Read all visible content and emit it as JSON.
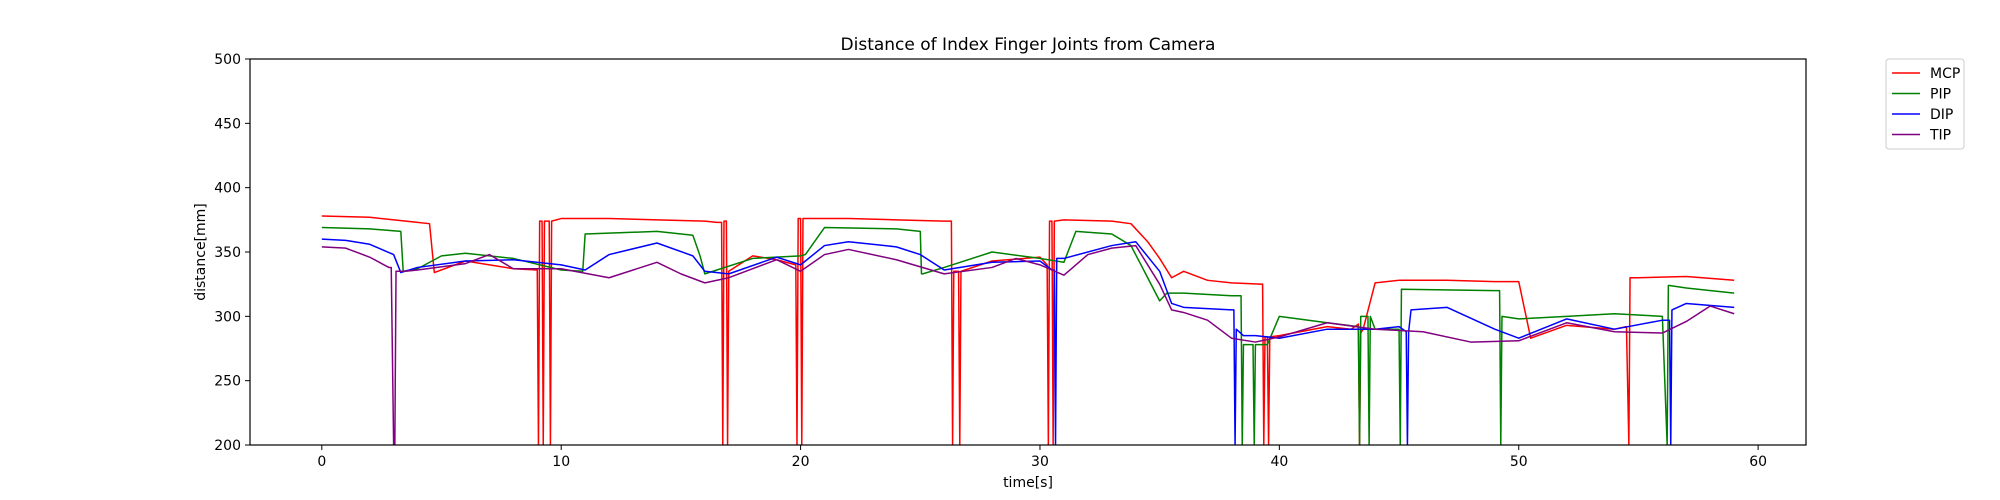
{
  "chart_data": {
    "type": "line",
    "title": "Distance of Index Finger Joints from Camera",
    "xlabel": "time[s]",
    "ylabel": "distance[mm]",
    "xlim": [
      -3,
      62
    ],
    "ylim": [
      200,
      500
    ],
    "xticks": [
      0,
      10,
      20,
      30,
      40,
      50,
      60
    ],
    "yticks": [
      200,
      250,
      300,
      350,
      400,
      450,
      500
    ],
    "grid": false,
    "legend": "outside-top-right",
    "series": [
      {
        "name": "MCP",
        "color": "#ff0000",
        "x": [
          0,
          2,
          4,
          4.5,
          4.7,
          6,
          8,
          9,
          9.05,
          9.1,
          9.2,
          9.25,
          9.3,
          9.5,
          9.55,
          9.6,
          10,
          12,
          14,
          16,
          16.5,
          16.7,
          16.75,
          16.8,
          16.9,
          16.95,
          17,
          18,
          19,
          19.8,
          19.85,
          19.9,
          20,
          20.05,
          20.1,
          22,
          24,
          26,
          26.3,
          26.35,
          26.4,
          26.6,
          26.65,
          26.7,
          28,
          30,
          30.3,
          30.35,
          30.4,
          30.5,
          30.55,
          30.6,
          31,
          33,
          33.8,
          34.5,
          35,
          35.5,
          36,
          37,
          38,
          39.2,
          39.3,
          39.35,
          39.4,
          39.5,
          39.55,
          39.6,
          40,
          42,
          43,
          43.3,
          43.35,
          43.4,
          43.5,
          44,
          45,
          47,
          49,
          50,
          50.5,
          52,
          54,
          54.5,
          54.6,
          54.65,
          54.7,
          55,
          57,
          59
        ],
        "y": [
          378,
          377,
          373,
          372,
          334,
          343,
          337,
          336,
          200,
          374,
          374,
          200,
          374,
          374,
          200,
          374,
          376,
          376,
          375,
          374,
          373,
          373,
          200,
          374,
          374,
          200,
          335,
          347,
          344,
          340,
          200,
          376,
          376,
          200,
          376,
          376,
          375,
          374,
          374,
          200,
          335,
          335,
          200,
          335,
          343,
          346,
          340,
          200,
          374,
          374,
          200,
          374,
          375,
          374,
          372,
          358,
          345,
          330,
          335,
          328,
          326,
          325,
          325,
          200,
          284,
          284,
          200,
          284,
          285,
          292,
          290,
          294,
          200,
          287,
          290,
          326,
          328,
          328,
          327,
          327,
          283,
          293,
          290,
          292,
          200,
          330,
          330,
          330,
          331,
          328
        ]
      },
      {
        "name": "PIP",
        "color": "#008000",
        "x": [
          0,
          2,
          3.3,
          3.4,
          4,
          5,
          6,
          8,
          10,
          10.9,
          11,
          14,
          15.5,
          15.8,
          16,
          18,
          20,
          20.2,
          21,
          24,
          25,
          25.05,
          25.1,
          26,
          28,
          30,
          31,
          31.5,
          33,
          33.8,
          34.5,
          35,
          35.3,
          36,
          38,
          38.4,
          38.45,
          38.5,
          38.9,
          38.95,
          39,
          39.5,
          40,
          42,
          43.3,
          43.35,
          43.4,
          43.7,
          43.75,
          43.8,
          44,
          45,
          45.05,
          45.1,
          49,
          49.2,
          49.25,
          49.3,
          50,
          52,
          54,
          56,
          56.2,
          56.25,
          56.3,
          57,
          59
        ],
        "y": [
          369,
          368,
          366,
          335,
          337,
          347,
          349,
          345,
          336,
          335,
          364,
          366,
          363,
          347,
          333,
          345,
          347,
          348,
          369,
          368,
          366,
          333,
          333,
          338,
          350,
          345,
          342,
          366,
          364,
          355,
          330,
          312,
          318,
          318,
          316,
          316,
          200,
          278,
          278,
          200,
          278,
          278,
          300,
          295,
          292,
          200,
          300,
          300,
          200,
          300,
          290,
          290,
          200,
          321,
          320,
          320,
          200,
          300,
          298,
          300,
          302,
          300,
          200,
          324,
          324,
          322,
          318
        ]
      },
      {
        "name": "DIP",
        "color": "#0000ff",
        "x": [
          0,
          1,
          2,
          3,
          3.3,
          4,
          6,
          8,
          10,
          11,
          12,
          14,
          15.5,
          16,
          17,
          19,
          20,
          21,
          22,
          24,
          25,
          26,
          28,
          30,
          30.5,
          30.6,
          30.65,
          30.7,
          31,
          33,
          34,
          35,
          35.5,
          36,
          38,
          38.1,
          38.15,
          38.2,
          38.5,
          39,
          40,
          42,
          44,
          45,
          45.3,
          45.35,
          45.4,
          45.5,
          47,
          49,
          50,
          52,
          54,
          56,
          56.3,
          56.35,
          56.4,
          57,
          59
        ],
        "y": [
          360,
          359,
          356,
          348,
          334,
          338,
          343,
          344,
          340,
          336,
          348,
          357,
          347,
          335,
          333,
          346,
          340,
          355,
          358,
          354,
          348,
          336,
          342,
          343,
          336,
          336,
          200,
          345,
          345,
          355,
          358,
          335,
          310,
          307,
          305,
          305,
          200,
          290,
          285,
          285,
          283,
          290,
          290,
          292,
          288,
          200,
          288,
          305,
          307,
          290,
          283,
          298,
          290,
          297,
          297,
          200,
          305,
          310,
          307
        ]
      },
      {
        "name": "TIP",
        "color": "#800080",
        "x": [
          0,
          1,
          2,
          2.8,
          2.9,
          3,
          3.05,
          3.1,
          3.5,
          4,
          6,
          7,
          8,
          10,
          12,
          14,
          15,
          16,
          17,
          19,
          20,
          21,
          22,
          24,
          26,
          28,
          29,
          30,
          31,
          32,
          33,
          34,
          35,
          35.5,
          36,
          37,
          38,
          39,
          40,
          42,
          44,
          46,
          48,
          50,
          52,
          54,
          56,
          57,
          58,
          59
        ],
        "y": [
          354,
          353,
          346,
          338,
          338,
          200,
          200,
          335,
          335,
          336,
          341,
          348,
          337,
          337,
          330,
          342,
          333,
          326,
          330,
          344,
          335,
          348,
          352,
          344,
          333,
          338,
          345,
          340,
          332,
          348,
          353,
          355,
          325,
          305,
          303,
          297,
          283,
          280,
          284,
          295,
          290,
          288,
          280,
          281,
          295,
          288,
          287,
          296,
          308,
          302
        ]
      }
    ]
  }
}
